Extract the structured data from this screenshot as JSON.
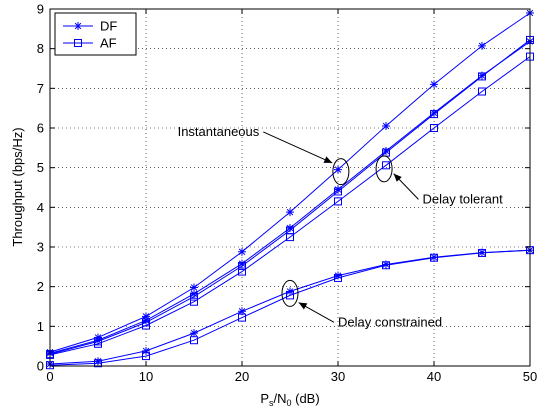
{
  "chart_data": {
    "type": "line",
    "xlabel_main": "P",
    "xlabel_sub1": "s",
    "xlabel_mid": "/N",
    "xlabel_sub2": "0",
    "xlabel_tail": " (dB)",
    "ylabel": "Throughput (bps/Hz)",
    "xlim": [
      0,
      50
    ],
    "ylim": [
      0,
      9
    ],
    "xticks": [
      0,
      10,
      20,
      30,
      40,
      50
    ],
    "yticks": [
      0,
      1,
      2,
      3,
      4,
      5,
      6,
      7,
      8,
      9
    ],
    "grid": true,
    "legend_position": "top-left",
    "line_color": "#0000ff",
    "legend": [
      {
        "label": "DF",
        "marker": "star"
      },
      {
        "label": "AF",
        "marker": "square"
      }
    ],
    "series": [
      {
        "name": "DF",
        "marker": "star",
        "x": [
          0,
          5,
          10,
          15,
          20,
          25,
          30,
          35,
          40,
          45,
          50
        ],
        "y": [
          0.35,
          0.72,
          1.25,
          1.98,
          2.88,
          3.88,
          4.95,
          6.05,
          7.1,
          8.07,
          8.9
        ]
      },
      {
        "name": "DF",
        "marker": "star",
        "x": [
          0,
          5,
          10,
          15,
          20,
          25,
          30,
          35,
          40,
          45,
          50
        ],
        "y": [
          0.32,
          0.65,
          1.15,
          1.82,
          2.58,
          3.48,
          4.45,
          5.42,
          6.38,
          7.32,
          8.18
        ]
      },
      {
        "name": "AF",
        "marker": "square",
        "x": [
          0,
          5,
          10,
          15,
          20,
          25,
          30,
          35,
          40,
          45,
          50
        ],
        "y": [
          0.3,
          0.62,
          1.1,
          1.75,
          2.52,
          3.42,
          4.4,
          5.38,
          6.35,
          7.3,
          8.22
        ]
      },
      {
        "name": "AF",
        "marker": "square",
        "x": [
          0,
          5,
          10,
          15,
          20,
          25,
          30,
          35,
          40,
          45,
          50
        ],
        "y": [
          0.28,
          0.56,
          1.02,
          1.62,
          2.38,
          3.25,
          4.15,
          5.06,
          6.0,
          6.92,
          7.8
        ]
      },
      {
        "name": "DF",
        "marker": "star",
        "x": [
          0,
          5,
          10,
          15,
          20,
          25,
          30,
          35,
          40,
          45,
          50
        ],
        "y": [
          0.05,
          0.12,
          0.38,
          0.83,
          1.38,
          1.88,
          2.28,
          2.56,
          2.74,
          2.86,
          2.92
        ]
      },
      {
        "name": "AF",
        "marker": "square",
        "x": [
          0,
          5,
          10,
          15,
          20,
          25,
          30,
          35,
          40,
          45,
          50
        ],
        "y": [
          0.02,
          0.07,
          0.25,
          0.65,
          1.22,
          1.78,
          2.22,
          2.54,
          2.73,
          2.85,
          2.92
        ]
      }
    ],
    "annotations": [
      {
        "text": "Instantaneous",
        "ellipse_at": {
          "x": 30.3,
          "y": 4.9
        },
        "label_at": {
          "x": 21.8,
          "y": 5.8
        },
        "arrow_to": {
          "x": 29.4,
          "y": 5.12
        }
      },
      {
        "text": "Delay tolerant",
        "ellipse_at": {
          "x": 34.8,
          "y": 4.97
        },
        "label_at": {
          "x": 38.8,
          "y": 4.1
        },
        "arrow_to": {
          "x": 35.8,
          "y": 4.85
        }
      },
      {
        "text": "Delay constrained",
        "ellipse_at": {
          "x": 25.0,
          "y": 1.83
        },
        "label_at": {
          "x": 30.0,
          "y": 1.0
        },
        "arrow_to": {
          "x": 25.9,
          "y": 1.6
        }
      }
    ]
  }
}
